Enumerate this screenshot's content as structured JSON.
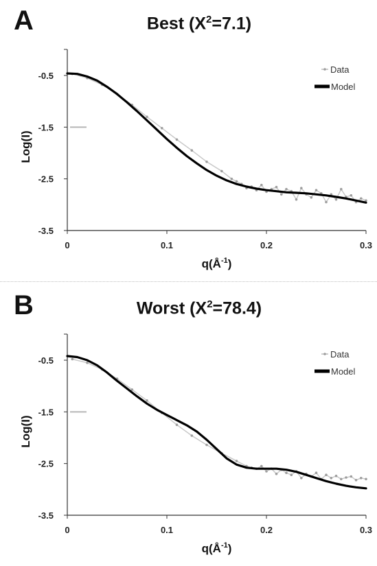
{
  "panels": [
    {
      "letter": "A",
      "title_main": "Best (X",
      "title_sup": "2",
      "title_rest": "=7.1)"
    },
    {
      "letter": "B",
      "title_main": "Worst (X",
      "title_sup": "2",
      "title_rest": "=78.4)"
    }
  ],
  "chart_data": [
    {
      "type": "line",
      "title": "Best (X2=7.1)",
      "xlabel": "q(Å-1)",
      "ylabel": "Log(I)",
      "xlim": [
        0,
        0.3
      ],
      "ylim": [
        -3.5,
        -0.5
      ],
      "xticks": [
        "0",
        "0.1",
        "0.2",
        "0.3"
      ],
      "yticks": [
        "-0.5",
        "-1.5",
        "-2.5",
        "-3.5"
      ],
      "legend": {
        "placement": "top-right",
        "entries": [
          "Data",
          "Model"
        ]
      },
      "grid": false,
      "series": [
        {
          "name": "Data",
          "kind": "scatter",
          "color": "#9e9e9e",
          "x": [
            0.005,
            0.02,
            0.035,
            0.05,
            0.065,
            0.08,
            0.095,
            0.11,
            0.125,
            0.14,
            0.155,
            0.165,
            0.17,
            0.175,
            0.18,
            0.185,
            0.19,
            0.195,
            0.2,
            0.205,
            0.21,
            0.215,
            0.22,
            0.225,
            0.23,
            0.235,
            0.24,
            0.245,
            0.25,
            0.255,
            0.26,
            0.265,
            0.27,
            0.275,
            0.28,
            0.285,
            0.29,
            0.295,
            0.3
          ],
          "y": [
            -0.47,
            -0.55,
            -0.68,
            -0.86,
            -1.07,
            -1.3,
            -1.52,
            -1.74,
            -1.95,
            -2.17,
            -2.35,
            -2.5,
            -2.55,
            -2.6,
            -2.68,
            -2.65,
            -2.72,
            -2.62,
            -2.75,
            -2.7,
            -2.66,
            -2.8,
            -2.7,
            -2.74,
            -2.9,
            -2.68,
            -2.8,
            -2.86,
            -2.72,
            -2.78,
            -2.95,
            -2.8,
            -2.9,
            -2.7,
            -2.85,
            -2.82,
            -2.95,
            -2.88,
            -2.92
          ]
        },
        {
          "name": "Model",
          "kind": "line",
          "color": "#000000",
          "x": [
            0,
            0.01,
            0.02,
            0.03,
            0.04,
            0.05,
            0.06,
            0.07,
            0.08,
            0.09,
            0.1,
            0.11,
            0.12,
            0.13,
            0.14,
            0.15,
            0.16,
            0.17,
            0.18,
            0.19,
            0.2,
            0.21,
            0.22,
            0.23,
            0.24,
            0.25,
            0.26,
            0.27,
            0.28,
            0.29,
            0.3
          ],
          "y": [
            -0.46,
            -0.47,
            -0.52,
            -0.6,
            -0.72,
            -0.86,
            -1.02,
            -1.19,
            -1.37,
            -1.55,
            -1.73,
            -1.9,
            -2.06,
            -2.2,
            -2.33,
            -2.44,
            -2.53,
            -2.6,
            -2.65,
            -2.69,
            -2.72,
            -2.74,
            -2.76,
            -2.77,
            -2.78,
            -2.8,
            -2.82,
            -2.85,
            -2.88,
            -2.92,
            -2.96
          ]
        }
      ]
    },
    {
      "type": "line",
      "title": "Worst (X2=78.4)",
      "xlabel": "q(Å-1)",
      "ylabel": "Log(I)",
      "xlim": [
        0,
        0.3
      ],
      "ylim": [
        -3.5,
        -0.5
      ],
      "xticks": [
        "0",
        "0.1",
        "0.2",
        "0.3"
      ],
      "yticks": [
        "-0.5",
        "-1.5",
        "-2.5",
        "-3.5"
      ],
      "legend": {
        "placement": "top-right",
        "entries": [
          "Data",
          "Model"
        ]
      },
      "grid": false,
      "series": [
        {
          "name": "Data",
          "kind": "scatter",
          "color": "#9e9e9e",
          "x": [
            0.005,
            0.02,
            0.035,
            0.05,
            0.065,
            0.08,
            0.095,
            0.11,
            0.125,
            0.14,
            0.155,
            0.17,
            0.18,
            0.185,
            0.19,
            0.195,
            0.2,
            0.205,
            0.21,
            0.215,
            0.22,
            0.225,
            0.23,
            0.235,
            0.24,
            0.245,
            0.25,
            0.255,
            0.26,
            0.265,
            0.27,
            0.275,
            0.28,
            0.285,
            0.29,
            0.295,
            0.3
          ],
          "y": [
            -0.48,
            -0.55,
            -0.68,
            -0.86,
            -1.07,
            -1.28,
            -1.52,
            -1.75,
            -1.96,
            -2.14,
            -2.3,
            -2.45,
            -2.55,
            -2.58,
            -2.6,
            -2.55,
            -2.65,
            -2.6,
            -2.7,
            -2.62,
            -2.68,
            -2.72,
            -2.65,
            -2.78,
            -2.7,
            -2.75,
            -2.68,
            -2.8,
            -2.72,
            -2.78,
            -2.74,
            -2.8,
            -2.77,
            -2.75,
            -2.82,
            -2.78,
            -2.8
          ]
        },
        {
          "name": "Model",
          "kind": "line",
          "color": "#000000",
          "x": [
            0,
            0.01,
            0.02,
            0.03,
            0.04,
            0.05,
            0.06,
            0.07,
            0.08,
            0.09,
            0.1,
            0.11,
            0.12,
            0.13,
            0.14,
            0.15,
            0.16,
            0.17,
            0.18,
            0.19,
            0.2,
            0.21,
            0.22,
            0.23,
            0.24,
            0.25,
            0.26,
            0.27,
            0.28,
            0.29,
            0.3
          ],
          "y": [
            -0.42,
            -0.44,
            -0.5,
            -0.6,
            -0.74,
            -0.9,
            -1.05,
            -1.2,
            -1.34,
            -1.46,
            -1.56,
            -1.66,
            -1.76,
            -1.88,
            -2.04,
            -2.22,
            -2.4,
            -2.52,
            -2.58,
            -2.6,
            -2.6,
            -2.6,
            -2.62,
            -2.66,
            -2.72,
            -2.78,
            -2.84,
            -2.89,
            -2.93,
            -2.96,
            -2.98
          ]
        }
      ]
    }
  ]
}
